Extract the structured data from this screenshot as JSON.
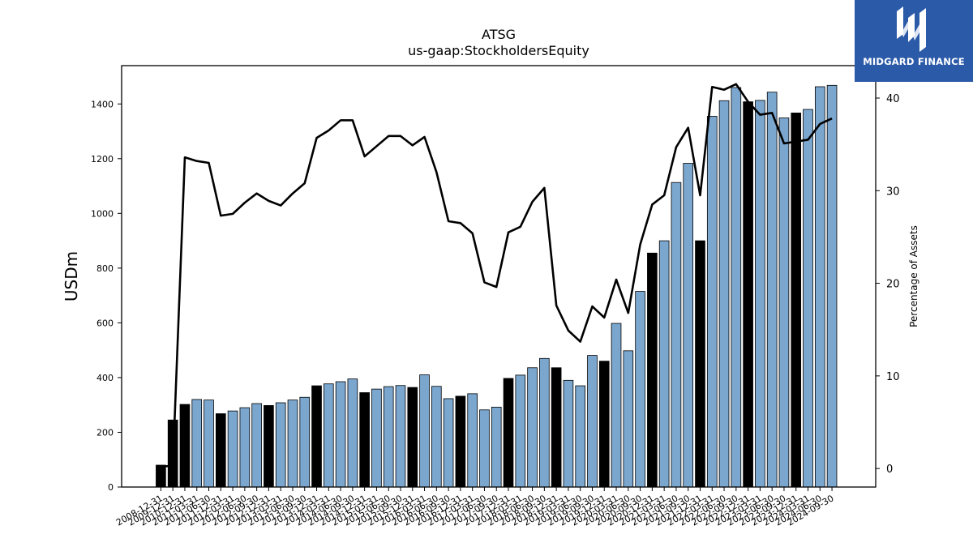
{
  "chart_data": {
    "type": "bar",
    "title": "ATSG",
    "subtitle": "us-gaap:StockholdersEquity",
    "ylabel": "USDm",
    "y2label": "Percentage of Assets",
    "ylim": [
      0,
      1540
    ],
    "y2lim": [
      -2,
      43.5
    ],
    "yticks": [
      0,
      200,
      400,
      600,
      800,
      1000,
      1200,
      1400
    ],
    "y2ticks": [
      0,
      10,
      20,
      30,
      40
    ],
    "categories": [
      "2008-12-31",
      "2009-12-31",
      "2010-12-31",
      "2011-03-31",
      "2011-06-30",
      "2011-12-31",
      "2012-03-31",
      "2012-06-30",
      "2012-09-30",
      "2012-12-31",
      "2013-03-31",
      "2013-06-30",
      "2013-09-30",
      "2013-12-31",
      "2014-03-31",
      "2014-06-30",
      "2014-09-30",
      "2014-12-31",
      "2015-03-31",
      "2015-06-30",
      "2015-09-30",
      "2015-12-31",
      "2016-03-31",
      "2016-06-30",
      "2016-09-30",
      "2016-12-31",
      "2017-03-31",
      "2017-06-30",
      "2017-09-30",
      "2017-12-31",
      "2018-03-31",
      "2018-06-30",
      "2018-09-30",
      "2018-12-31",
      "2019-03-31",
      "2019-06-30",
      "2019-09-30",
      "2019-12-31",
      "2020-03-31",
      "2020-06-30",
      "2020-09-30",
      "2020-12-31",
      "2021-03-31",
      "2021-06-30",
      "2021-09-30",
      "2021-12-31",
      "2022-03-31",
      "2022-06-30",
      "2022-09-30",
      "2022-12-31",
      "2023-03-31",
      "2023-06-30",
      "2023-09-30",
      "2023-12-31",
      "2024-03-31",
      "2024-06-30",
      "2024-09-30"
    ],
    "series": [
      {
        "values": [
          80,
          245,
          302,
          320,
          318,
          268,
          278,
          290,
          305,
          298,
          308,
          318,
          328,
          370,
          377,
          385,
          395,
          345,
          358,
          367,
          371,
          364,
          410,
          368,
          323,
          332,
          341,
          282,
          292,
          397,
          409,
          436,
          470,
          436,
          390,
          370,
          481,
          460,
          598,
          498,
          715,
          855,
          900,
          1113,
          1183,
          900,
          1355,
          1412,
          1460,
          1408,
          1413,
          1443,
          1349,
          1367,
          1380,
          1463,
          1468
        ],
        "annual": [
          true,
          true,
          true,
          false,
          false,
          true,
          false,
          false,
          false,
          true,
          false,
          false,
          false,
          true,
          false,
          false,
          false,
          true,
          false,
          false,
          false,
          true,
          false,
          false,
          false,
          true,
          false,
          false,
          false,
          true,
          false,
          false,
          false,
          true,
          false,
          false,
          false,
          true,
          false,
          false,
          false,
          true,
          false,
          false,
          false,
          true,
          false,
          false,
          false,
          true,
          false,
          false,
          false,
          true,
          false,
          false,
          false
        ]
      },
      {
        "axis": "right",
        "values": [
          0.2,
          0.3,
          33.6,
          33.2,
          33.0,
          27.3,
          27.5,
          28.7,
          29.7,
          28.9,
          28.4,
          29.7,
          30.8,
          35.7,
          36.5,
          37.6,
          37.6,
          33.7,
          34.8,
          35.9,
          35.9,
          34.9,
          35.8,
          32.0,
          26.7,
          26.5,
          25.4,
          20.1,
          19.6,
          25.5,
          26.1,
          28.8,
          30.3,
          17.6,
          14.9,
          13.7,
          17.5,
          16.3,
          20.4,
          16.8,
          24.2,
          28.5,
          29.5,
          34.7,
          36.8,
          29.5,
          41.2,
          40.9,
          41.5,
          39.6,
          38.2,
          38.4,
          35.1,
          35.3,
          35.5,
          37.2,
          37.8
        ]
      }
    ],
    "colors": {
      "annual_bar": "#000000",
      "quarter_bar": "#7ba7cf",
      "line": "#000000"
    },
    "grid": false
  },
  "brand": {
    "name": "MIDGARD FINANCE"
  }
}
